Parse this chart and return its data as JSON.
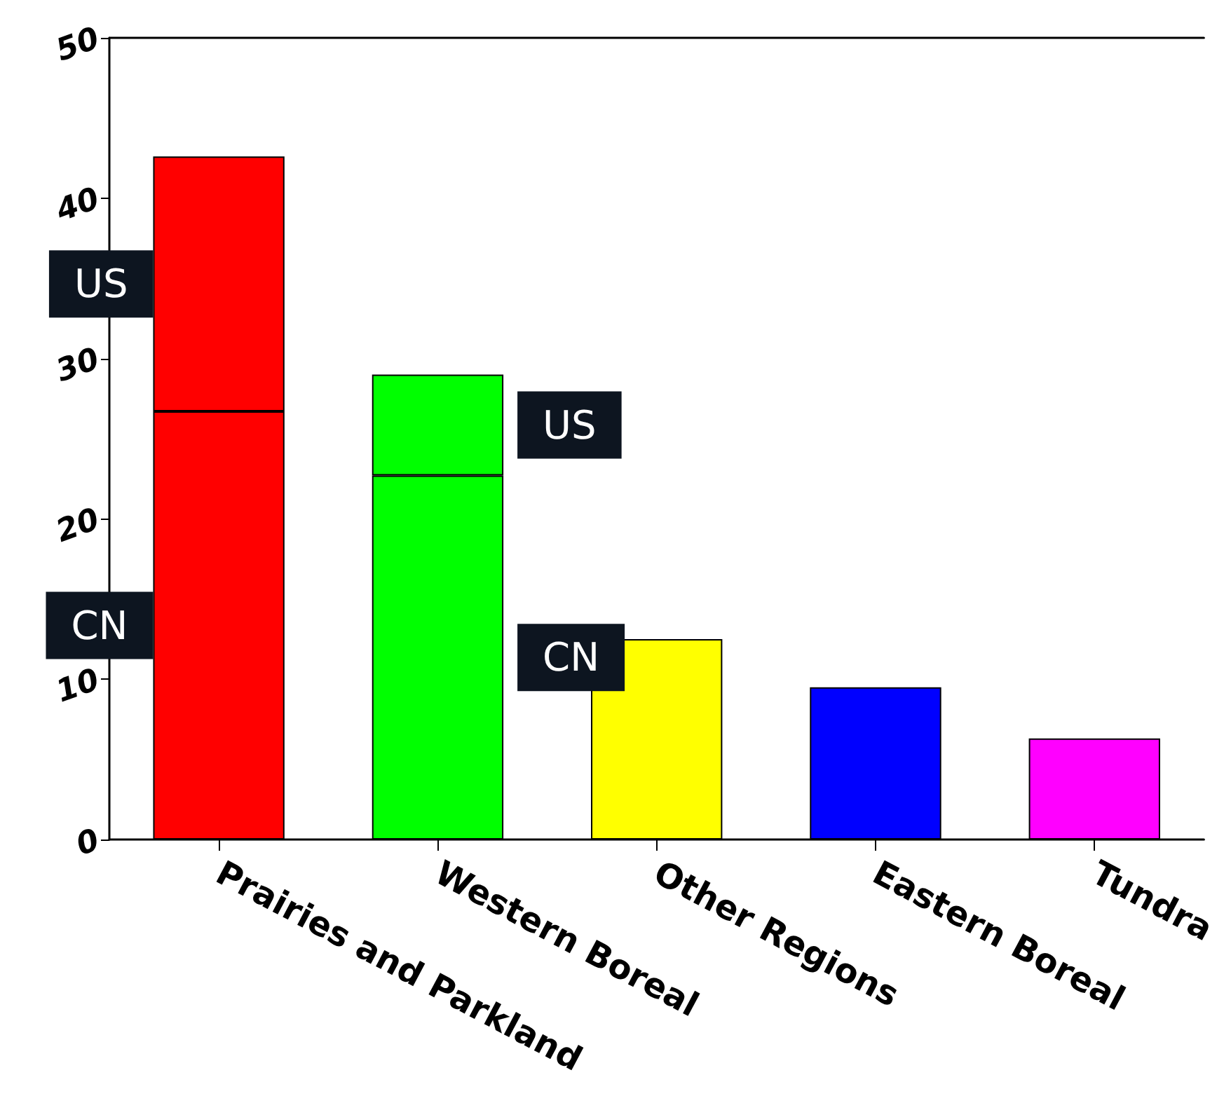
{
  "chart_data": {
    "type": "bar",
    "stacked": true,
    "categories": [
      "Prairies and Parkland",
      "Western Boreal",
      "Other Regions",
      "Eastern Boreal",
      "Tundra"
    ],
    "series": [
      {
        "name": "CN",
        "colors": [
          "#ff0000",
          "#00ff00",
          "#ffff00",
          "#0000ff",
          "#ff00ff"
        ],
        "values": [
          26.7,
          22.7,
          12.5,
          9.5,
          6.3
        ]
      },
      {
        "name": "US",
        "colors": [
          "#ff0000",
          "#00ff00",
          "#ffff00",
          "#0000ff",
          "#ff00ff"
        ],
        "values": [
          15.9,
          6.3,
          null,
          null,
          null
        ]
      }
    ],
    "ylim": [
      0,
      50
    ],
    "yticks": [
      0,
      10,
      20,
      30,
      40,
      50
    ],
    "grid": false,
    "legend": false
  }
}
